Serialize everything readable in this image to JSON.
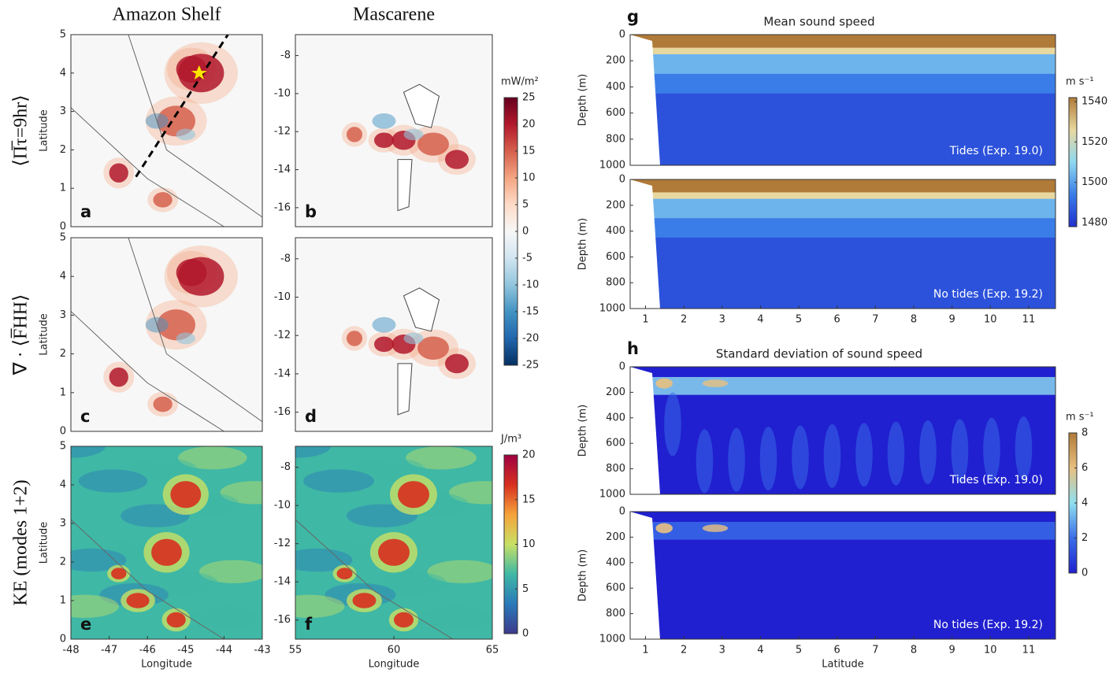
{
  "chart_data": [
    {
      "type": "heatmap",
      "title": "Amazon Shelf",
      "row_label": "⟨Π̅τ=9hr⟩",
      "label": "a",
      "y_label": "Latitude",
      "xlim": [
        -48,
        -43
      ],
      "ylim": [
        0,
        5
      ],
      "yticks": [
        0,
        1,
        2,
        3,
        4,
        5
      ]
    },
    {
      "type": "heatmap",
      "title": "Mascarene",
      "label": "b",
      "xlim": [
        55,
        65
      ],
      "ylim": [
        -17,
        -6.9
      ],
      "yticks": [
        -8,
        -10,
        -12,
        -14,
        -16
      ]
    },
    {
      "type": "heatmap",
      "row_label": "∇ · ⟨F̅HH⟩",
      "label": "c",
      "y_label": "Latitude",
      "xlim": [
        -48,
        -43
      ],
      "ylim": [
        0,
        5
      ],
      "yticks": [
        0,
        1,
        2,
        3,
        4,
        5
      ]
    },
    {
      "type": "heatmap",
      "label": "d",
      "xlim": [
        55,
        65
      ],
      "ylim": [
        -17,
        -6.9
      ],
      "yticks": [
        -8,
        -10,
        -12,
        -14,
        -16
      ]
    },
    {
      "type": "heatmap",
      "row_label": "KE (modes 1+2)",
      "label": "e",
      "y_label": "Latitude",
      "x_label": "Longitude",
      "xlim": [
        -48,
        -43
      ],
      "ylim": [
        0,
        5
      ],
      "xticks": [
        -48,
        -47,
        -46,
        -45,
        -44,
        -43
      ],
      "yticks": [
        0,
        1,
        2,
        3,
        4,
        5
      ]
    },
    {
      "type": "heatmap",
      "label": "f",
      "x_label": "Longitude",
      "xlim": [
        55,
        65
      ],
      "ylim": [
        -17,
        -6.9
      ],
      "xticks": [
        55,
        60,
        65
      ],
      "yticks": [
        -8,
        -10,
        -12,
        -14,
        -16
      ]
    },
    {
      "type": "heatmap",
      "title": "Mean sound speed",
      "label": "g",
      "y_label": "Depth (m)",
      "annotation": "Tides (Exp. 19.0)",
      "xlim": [
        0.6,
        11.7
      ],
      "ylim": [
        1000,
        0
      ],
      "yticks": [
        0,
        200,
        400,
        600,
        800,
        1000
      ]
    },
    {
      "type": "heatmap",
      "y_label": "Depth (m)",
      "annotation": "No tides (Exp. 19.2)",
      "xlim": [
        0.6,
        11.7
      ],
      "ylim": [
        1000,
        0
      ],
      "xticks": [
        1,
        2,
        3,
        4,
        5,
        6,
        7,
        8,
        9,
        10,
        11
      ],
      "yticks": [
        0,
        200,
        400,
        600,
        800,
        1000
      ]
    },
    {
      "type": "heatmap",
      "title": "Standard deviation of sound speed",
      "label": "h",
      "y_label": "Depth (m)",
      "annotation": "Tides (Exp. 19.0)",
      "xlim": [
        0.6,
        11.7
      ],
      "ylim": [
        1000,
        0
      ],
      "yticks": [
        0,
        200,
        400,
        600,
        800,
        1000
      ]
    },
    {
      "type": "heatmap",
      "y_label": "Depth (m)",
      "x_label": "Latitude",
      "annotation": "No tides (Exp. 19.2)",
      "xlim": [
        0.6,
        11.7
      ],
      "ylim": [
        1000,
        0
      ],
      "xticks": [
        1,
        2,
        3,
        4,
        5,
        6,
        7,
        8,
        9,
        10,
        11
      ],
      "yticks": [
        0,
        200,
        400,
        600,
        800,
        1000
      ]
    },
    {
      "type": "colorbar",
      "label": "mW/m²",
      "ylim": [
        -25,
        25
      ],
      "yticks": [
        25,
        20,
        15,
        10,
        5,
        0,
        -5,
        -10,
        -15,
        -20,
        -25
      ],
      "colors": [
        "#053061",
        "#2166ac",
        "#4393c3",
        "#92c5de",
        "#d1e5f0",
        "#f7f7f7",
        "#fddbc7",
        "#f4a582",
        "#d6604d",
        "#b2182b",
        "#67001f"
      ]
    },
    {
      "type": "colorbar",
      "label": "J/m³",
      "ylim": [
        0,
        20
      ],
      "yticks": [
        20,
        15,
        10,
        5,
        0
      ],
      "colors": [
        "#3d3a8c",
        "#2a7ab9",
        "#3fb8a5",
        "#c8e065",
        "#f6a33b",
        "#d7301f",
        "#9e0142"
      ]
    },
    {
      "type": "colorbar",
      "label": "m s⁻¹",
      "ylim": [
        1478,
        1542
      ],
      "yticks": [
        1540,
        1520,
        1500,
        1480
      ],
      "colors": [
        "#2030d0",
        "#3a7de8",
        "#8fd8f0",
        "#e8d8a0",
        "#b07a38"
      ]
    },
    {
      "type": "colorbar",
      "label": "m s⁻¹",
      "ylim": [
        0,
        8
      ],
      "yticks": [
        8,
        6,
        4,
        2,
        0
      ],
      "colors": [
        "#2020d0",
        "#3a6ee8",
        "#90e0f0",
        "#e8c080",
        "#b07a38"
      ]
    }
  ]
}
